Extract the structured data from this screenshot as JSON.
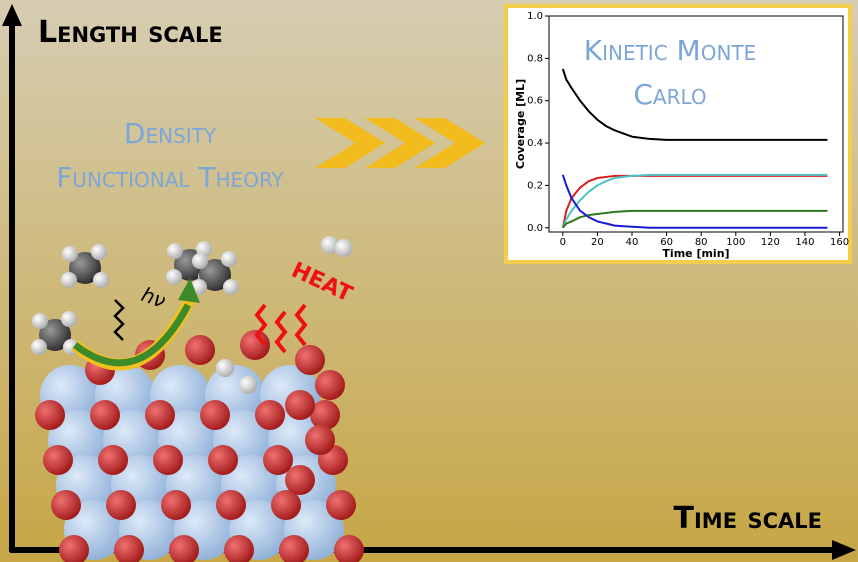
{
  "labels": {
    "length_scale": "Length scale",
    "time_scale": "Time scale",
    "dft_line1": "Density",
    "dft_line2": "Functional Theory",
    "kmc_line1": "Kinetic Monte",
    "kmc_line2": "Carlo",
    "heat": "HEAT",
    "photon": "hν"
  },
  "chart_data": {
    "type": "line",
    "x_label": "Time [min]",
    "y_label": "Coverage [ML]",
    "x": [
      0,
      2,
      5,
      10,
      15,
      20,
      25,
      30,
      40,
      50,
      60,
      80,
      100,
      120,
      140,
      153
    ],
    "series": [
      {
        "color": "#000000",
        "values": [
          0.75,
          0.7,
          0.66,
          0.6,
          0.55,
          0.51,
          0.48,
          0.46,
          0.43,
          0.42,
          0.415,
          0.415,
          0.415,
          0.415,
          0.415,
          0.415
        ]
      },
      {
        "color": "#d62020",
        "values": [
          0,
          0.08,
          0.14,
          0.19,
          0.22,
          0.235,
          0.24,
          0.245,
          0.245,
          0.245,
          0.245,
          0.245,
          0.245,
          0.245,
          0.245,
          0.245
        ]
      },
      {
        "color": "#4fc4c4",
        "values": [
          0,
          0.04,
          0.08,
          0.13,
          0.17,
          0.2,
          0.22,
          0.235,
          0.245,
          0.25,
          0.25,
          0.25,
          0.25,
          0.25,
          0.25,
          0.25
        ]
      },
      {
        "color": "#2a7a1a",
        "values": [
          0,
          0.02,
          0.03,
          0.05,
          0.06,
          0.065,
          0.07,
          0.075,
          0.08,
          0.08,
          0.08,
          0.08,
          0.08,
          0.08,
          0.08,
          0.08
        ]
      },
      {
        "color": "#1a1ad6",
        "values": [
          0.25,
          0.2,
          0.14,
          0.08,
          0.05,
          0.03,
          0.02,
          0.01,
          0.005,
          0,
          0,
          0,
          0,
          0,
          0,
          0
        ]
      }
    ],
    "xlim": [
      -8,
      162
    ],
    "ylim": [
      -0.02,
      1.0
    ],
    "xticks": [
      0,
      20,
      40,
      60,
      80,
      100,
      120,
      140,
      160
    ],
    "yticks": [
      {
        "value": 0,
        "label": "0.0"
      },
      {
        "value": 0.2,
        "label": "0.2"
      },
      {
        "value": 0.4,
        "label": "0.4"
      },
      {
        "value": 0.6,
        "label": "0.6"
      },
      {
        "value": 0.8,
        "label": "0.8"
      },
      {
        "value": 1.0,
        "label": "1.0"
      }
    ]
  }
}
